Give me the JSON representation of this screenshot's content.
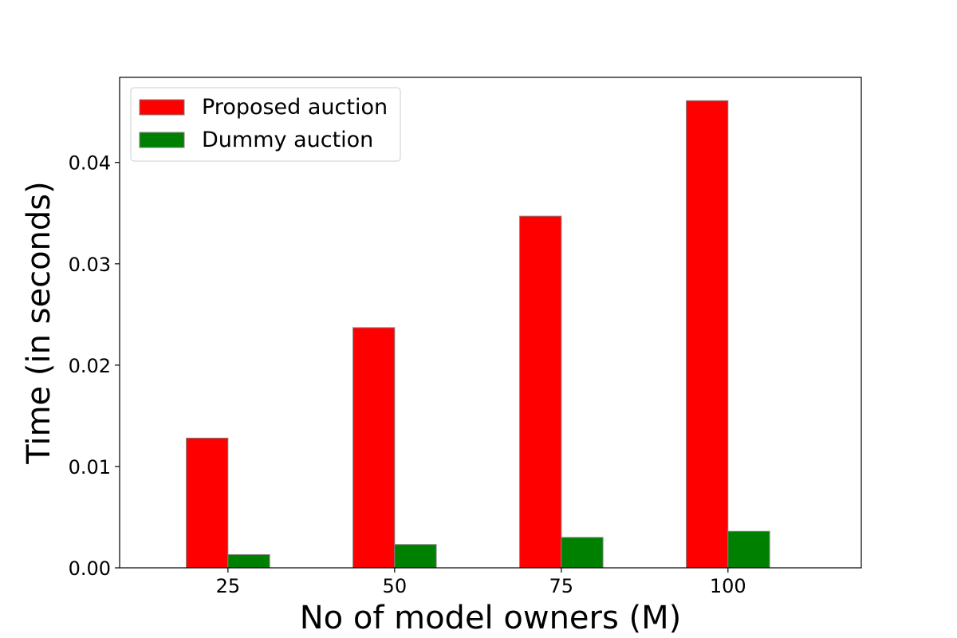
{
  "chart_data": {
    "type": "bar",
    "xlabel": "No of model owners (M)",
    "ylabel": "Time (in seconds)",
    "categories": [
      "25",
      "50",
      "75",
      "100"
    ],
    "series": [
      {
        "name": "Proposed auction",
        "color": "#ff0000",
        "values": [
          0.0128,
          0.0237,
          0.0347,
          0.0461
        ]
      },
      {
        "name": "Dummy auction",
        "color": "#008000",
        "values": [
          0.0013,
          0.0023,
          0.003,
          0.0036
        ]
      }
    ],
    "ylim": [
      0,
      0.0484
    ],
    "yticks": [
      {
        "value": 0,
        "label": "0.00"
      },
      {
        "value": 0.01,
        "label": "0.01"
      },
      {
        "value": 0.02,
        "label": "0.02"
      },
      {
        "value": 0.03,
        "label": "0.03"
      },
      {
        "value": 0.04,
        "label": "0.04"
      }
    ],
    "grid": false,
    "legend_position": "top-left",
    "bar_edge_color": "#808080"
  }
}
